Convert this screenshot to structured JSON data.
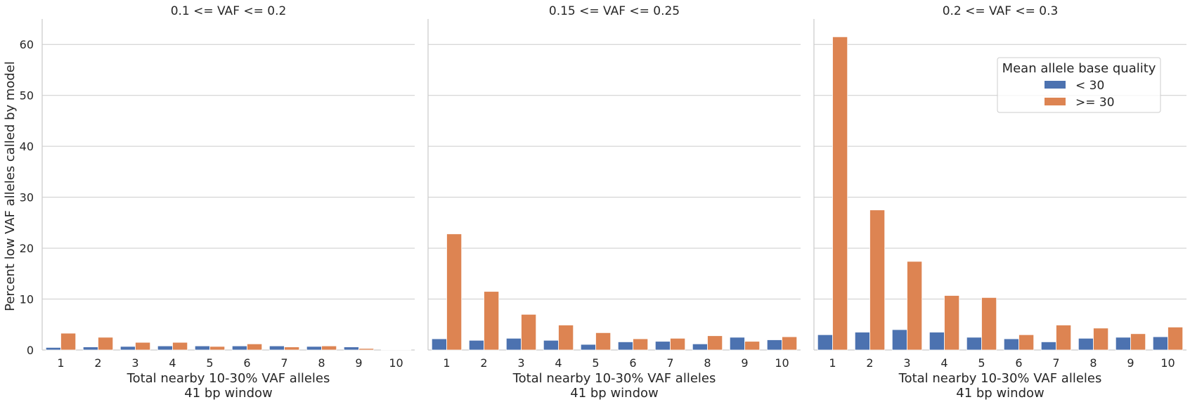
{
  "chart_data": {
    "type": "bar",
    "ylabel": "Percent low VAF alleles called by model",
    "xlabel_line1": "Total nearby 10-30% VAF alleles",
    "xlabel_line2": "41 bp window",
    "ylim": [
      0,
      65
    ],
    "yticks": [
      0,
      10,
      20,
      30,
      40,
      50,
      60
    ],
    "categories": [
      "1",
      "2",
      "3",
      "4",
      "5",
      "6",
      "7",
      "8",
      "9",
      "10"
    ],
    "grid": true,
    "colors": {
      "low": "#4c72b0",
      "high": "#dd8452"
    },
    "legend": {
      "title": "Mean allele base quality",
      "placement": "upper-right of third panel",
      "entries": [
        "< 30",
        ">= 30"
      ]
    },
    "panels": [
      {
        "title": "0.1 <= VAF <= 0.2",
        "series": [
          {
            "name": "< 30",
            "values": [
              0.5,
              0.6,
              0.7,
              0.8,
              0.8,
              0.8,
              0.8,
              0.7,
              0.6,
              0.1
            ]
          },
          {
            "name": ">= 30",
            "values": [
              3.3,
              2.5,
              1.5,
              1.5,
              0.7,
              1.2,
              0.6,
              0.8,
              0.3,
              0.1
            ]
          }
        ]
      },
      {
        "title": "0.15 <= VAF <= 0.25",
        "series": [
          {
            "name": "< 30",
            "values": [
              2.2,
              1.9,
              2.3,
              1.9,
              1.1,
              1.6,
              1.7,
              1.2,
              2.5,
              2.0
            ]
          },
          {
            "name": ">= 30",
            "values": [
              22.8,
              11.5,
              7.0,
              4.9,
              3.4,
              2.2,
              2.3,
              2.8,
              1.7,
              2.6
            ]
          }
        ]
      },
      {
        "title": "0.2 <= VAF <= 0.3",
        "series": [
          {
            "name": "< 30",
            "values": [
              3.0,
              3.5,
              4.0,
              3.5,
              2.5,
              2.2,
              1.6,
              2.3,
              2.5,
              2.6
            ]
          },
          {
            "name": ">= 30",
            "values": [
              61.5,
              27.5,
              17.4,
              10.7,
              10.3,
              3.0,
              4.9,
              4.3,
              3.2,
              4.5
            ]
          }
        ]
      }
    ]
  }
}
